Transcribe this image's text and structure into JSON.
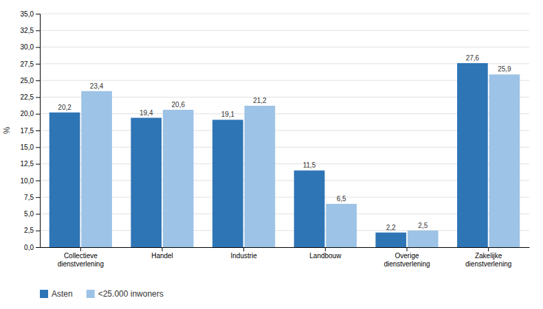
{
  "chart_data": {
    "type": "bar",
    "categories": [
      "Collectieve\ndienstverlening",
      "Handel",
      "Industrie",
      "Landbouw",
      "Overige\ndienstverlening",
      "Zakelijke\ndienstverlening"
    ],
    "series": [
      {
        "name": "Asten",
        "color": "#2E75B6",
        "values": [
          20.2,
          19.4,
          19.1,
          11.5,
          2.2,
          27.6
        ],
        "value_labels": [
          "20,2",
          "19,4",
          "19,1",
          "11,5",
          "2,2",
          "27,6"
        ]
      },
      {
        "name": "<25.000 inwoners",
        "color": "#9DC3E6",
        "values": [
          23.4,
          20.6,
          21.2,
          6.5,
          2.5,
          25.9
        ],
        "value_labels": [
          "23,4",
          "20,6",
          "21,2",
          "6,5",
          "2,5",
          "25,9"
        ]
      }
    ],
    "ylabel": "%",
    "ylim": [
      0,
      35
    ],
    "yticks": [
      {
        "value": 0.0,
        "label": "0,0"
      },
      {
        "value": 2.5,
        "label": "2,5"
      },
      {
        "value": 5.0,
        "label": "5,0"
      },
      {
        "value": 7.5,
        "label": "7,5"
      },
      {
        "value": 10.0,
        "label": "10,0"
      },
      {
        "value": 12.5,
        "label": "12,5"
      },
      {
        "value": 15.0,
        "label": "15,0"
      },
      {
        "value": 17.5,
        "label": "17,5"
      },
      {
        "value": 20.0,
        "label": "20,0"
      },
      {
        "value": 22.5,
        "label": "22,5"
      },
      {
        "value": 25.0,
        "label": "25,0"
      },
      {
        "value": 27.5,
        "label": "27,5"
      },
      {
        "value": 30.0,
        "label": "30,0"
      },
      {
        "value": 32.5,
        "label": "32,5"
      },
      {
        "value": 35.0,
        "label": "35,0"
      }
    ],
    "grid": true,
    "legend": "bottom",
    "data_labels": true
  }
}
